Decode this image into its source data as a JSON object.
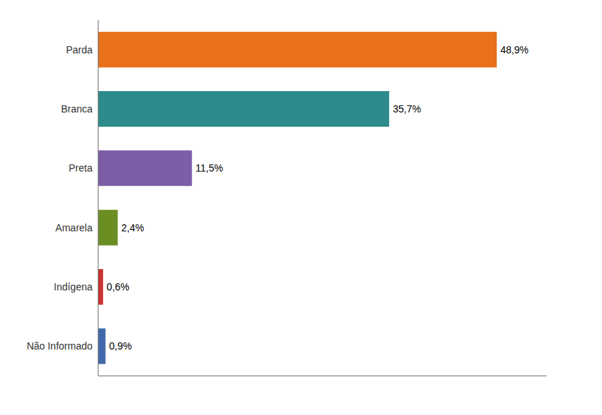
{
  "chart_data": {
    "type": "bar",
    "orientation": "horizontal",
    "categories": [
      "Parda",
      "Branca",
      "Preta",
      "Amarela",
      "Indígena",
      "Não Informado"
    ],
    "values": [
      48.9,
      35.7,
      11.5,
      2.4,
      0.6,
      0.9
    ],
    "value_labels": [
      "48,9%",
      "35,7%",
      "11,5%",
      "2,4%",
      "0,6%",
      "0,9%"
    ],
    "colors": [
      "#E8711A",
      "#2E8B8B",
      "#7B5EA7",
      "#6B8E23",
      "#CC3333",
      "#4169AA"
    ],
    "xlim": [
      0,
      55
    ],
    "xticks": [],
    "grid": false,
    "data_labels": true,
    "tick_labels": "y"
  }
}
